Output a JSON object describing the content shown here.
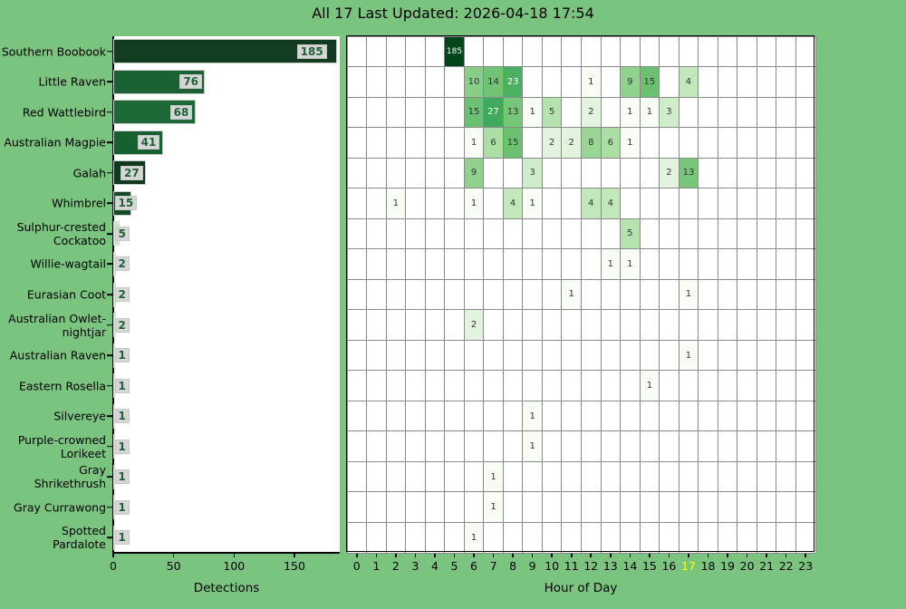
{
  "title": "All 17 Last Updated: 2026-04-18 17:54",
  "colors": {
    "background": "#7bc480",
    "plot_background": "#ffffff",
    "grid": "#8a8a8a",
    "spine": "#000000",
    "bar_label_box": "#d6d6d6",
    "bar_label_text": "#1e6234",
    "highlight_tick": "#ffff00",
    "heatmap_max": "#00441b"
  },
  "chart_data": [
    {
      "type": "bar",
      "orientation": "horizontal",
      "xlabel": "Detections",
      "xticks": [
        0,
        50,
        100,
        150
      ],
      "xlim": [
        0,
        187.5
      ],
      "categories": [
        "Southern Boobook",
        "Little Raven",
        "Red Wattlebird",
        "Australian Magpie",
        "Galah",
        "Whimbrel",
        "Sulphur-crested\nCockatoo",
        "Willie-wagtail",
        "Eurasian Coot",
        "Australian Owlet-\nnightjar",
        "Australian Raven",
        "Eastern Rosella",
        "Silvereye",
        "Purple-crowned\nLorikeet",
        "Gray\nShrikethrush",
        "Gray Currawong",
        "Spotted\nPardalote"
      ],
      "values": [
        185,
        76,
        68,
        41,
        27,
        15,
        5,
        2,
        2,
        2,
        1,
        1,
        1,
        1,
        1,
        1,
        1
      ],
      "bar_colors": [
        "#133d20",
        "#1b6134",
        "#1c6937",
        "#17602f",
        "#0f3a1e",
        "#134c27",
        "#cfe8ca",
        "#daeed6",
        "#cfe8ca",
        "#d4ebcf",
        "#dff1da",
        "#dff1da",
        "#dff1da",
        "#dff1da",
        "#dff1da",
        "#dff1da",
        "#dff1da"
      ]
    },
    {
      "type": "heatmap",
      "xlabel": "Hour of Day",
      "x": [
        0,
        1,
        2,
        3,
        4,
        5,
        6,
        7,
        8,
        9,
        10,
        11,
        12,
        13,
        14,
        15,
        16,
        17,
        18,
        19,
        20,
        21,
        22,
        23
      ],
      "highlight_x": 17,
      "color_scale": "Greens-log",
      "max_value": 185,
      "rows": [
        {
          "name": "Southern Boobook",
          "cells": [
            [
              5,
              185
            ]
          ]
        },
        {
          "name": "Little Raven",
          "cells": [
            [
              6,
              10
            ],
            [
              7,
              14
            ],
            [
              8,
              23
            ],
            [
              12,
              1
            ],
            [
              14,
              9
            ],
            [
              15,
              15
            ],
            [
              17,
              4
            ]
          ]
        },
        {
          "name": "Red Wattlebird",
          "cells": [
            [
              6,
              15
            ],
            [
              7,
              27
            ],
            [
              8,
              13
            ],
            [
              9,
              1
            ],
            [
              10,
              5
            ],
            [
              12,
              2
            ],
            [
              14,
              1
            ],
            [
              15,
              1
            ],
            [
              16,
              3
            ]
          ]
        },
        {
          "name": "Australian Magpie",
          "cells": [
            [
              6,
              1
            ],
            [
              7,
              6
            ],
            [
              8,
              15
            ],
            [
              10,
              2
            ],
            [
              11,
              2
            ],
            [
              12,
              8
            ],
            [
              13,
              6
            ],
            [
              14,
              1
            ]
          ]
        },
        {
          "name": "Galah",
          "cells": [
            [
              6,
              9
            ],
            [
              9,
              3
            ],
            [
              16,
              2
            ],
            [
              17,
              13
            ]
          ]
        },
        {
          "name": "Whimbrel",
          "cells": [
            [
              2,
              1
            ],
            [
              6,
              1
            ],
            [
              8,
              4
            ],
            [
              9,
              1
            ],
            [
              12,
              4
            ],
            [
              13,
              4
            ]
          ]
        },
        {
          "name": "Sulphur-crested Cockatoo",
          "cells": [
            [
              14,
              5
            ]
          ]
        },
        {
          "name": "Willie-wagtail",
          "cells": [
            [
              13,
              1
            ],
            [
              14,
              1
            ]
          ]
        },
        {
          "name": "Eurasian Coot",
          "cells": [
            [
              11,
              1
            ],
            [
              17,
              1
            ]
          ]
        },
        {
          "name": "Australian Owlet-nightjar",
          "cells": [
            [
              6,
              2
            ]
          ]
        },
        {
          "name": "Australian Raven",
          "cells": [
            [
              17,
              1
            ]
          ]
        },
        {
          "name": "Eastern Rosella",
          "cells": [
            [
              15,
              1
            ]
          ]
        },
        {
          "name": "Silvereye",
          "cells": [
            [
              9,
              1
            ]
          ]
        },
        {
          "name": "Purple-crowned Lorikeet",
          "cells": [
            [
              9,
              1
            ]
          ]
        },
        {
          "name": "Gray Shrikethrush",
          "cells": [
            [
              7,
              1
            ]
          ]
        },
        {
          "name": "Gray Currawong",
          "cells": [
            [
              7,
              1
            ]
          ]
        },
        {
          "name": "Spotted Pardalote",
          "cells": [
            [
              6,
              1
            ]
          ]
        }
      ]
    }
  ]
}
